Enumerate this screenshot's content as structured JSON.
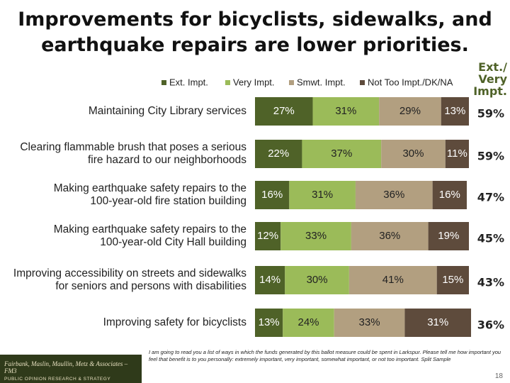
{
  "chart_data": {
    "type": "stacked-bar-horizontal",
    "title": "Improvements for bicyclists, sidewalks, and earthquake repairs are lower priorities.",
    "categories": [
      "Maintaining City Library services",
      "Clearing flammable brush that poses a serious\nfire hazard to our neighborhoods",
      "Making earthquake safety repairs to the\n100-year-old fire station building",
      "Making earthquake safety repairs to the\n100-year-old City Hall building",
      "Improving accessibility on streets and sidewalks\nfor seniors and persons with disabilities",
      "Improving safety for bicyclists"
    ],
    "xlim": [
      0,
      100
    ],
    "series": [
      {
        "name": "Ext. Impt.",
        "color": "#4f6228",
        "values": [
          27,
          22,
          16,
          12,
          14,
          13
        ],
        "value_labels": [
          "27%",
          "22%",
          "16%",
          "12%",
          "14%",
          "13%"
        ]
      },
      {
        "name": "Very Impt.",
        "color": "#9bbb59",
        "values": [
          31,
          37,
          31,
          33,
          30,
          24
        ],
        "value_labels": [
          "31%",
          "37%",
          "31%",
          "33%",
          "30%",
          "24%"
        ]
      },
      {
        "name": "Smwt. Impt.",
        "color": "#b29f80",
        "values": [
          29,
          30,
          36,
          36,
          41,
          33
        ],
        "value_labels": [
          "29%",
          "30%",
          "36%",
          "36%",
          "41%",
          "33%"
        ]
      },
      {
        "name": "Not Too Impt./DK/NA",
        "color": "#5e4b3c",
        "values": [
          13,
          11,
          16,
          19,
          15,
          31
        ],
        "value_labels": [
          "13%",
          "11%",
          "16%",
          "19%",
          "15%",
          "31%"
        ]
      }
    ],
    "combined": {
      "title": "Ext./\nVery\nImpt.",
      "values": [
        59,
        59,
        47,
        45,
        43,
        36
      ],
      "value_labels": [
        "59%",
        "59%",
        "47%",
        "45%",
        "43%",
        "36%"
      ]
    },
    "footnote": "I am going to read you a list of ways in which the funds generated by this ballot measure could be spent in Larkspur. Please tell me how important you feel that benefit is to you personally: extremely important, very important, somewhat important, or not too important. Split Sample",
    "logo": "Fairbank, Maslin, Maullin, Metz & Associates – FM3",
    "logo_tagline": "PUBLIC OPINION RESEARCH & STRATEGY",
    "page_number": "18"
  }
}
